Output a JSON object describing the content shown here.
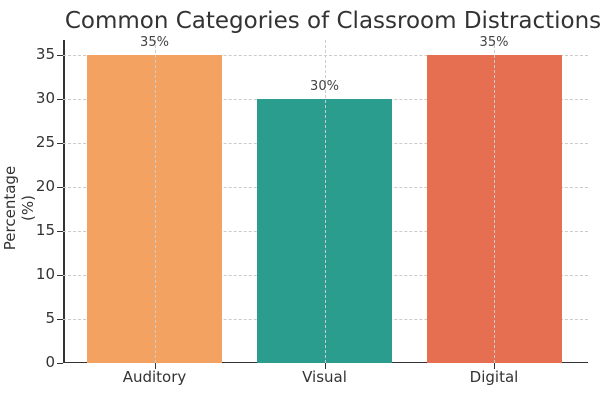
{
  "chart_data": {
    "type": "bar",
    "title": "Common Categories of Classroom Distractions",
    "xlabel": "",
    "ylabel": "Percentage (%)",
    "categories": [
      "Auditory",
      "Visual",
      "Digital"
    ],
    "values": [
      35,
      30,
      35
    ],
    "value_labels": [
      "35%",
      "30%",
      "35%"
    ],
    "colors": [
      "#f4a261",
      "#2a9d8f",
      "#e76f51"
    ],
    "ylim": [
      0,
      36.75
    ],
    "yticks": [
      0,
      5,
      10,
      15,
      20,
      25,
      30,
      35
    ],
    "grid": true,
    "legend": null
  }
}
